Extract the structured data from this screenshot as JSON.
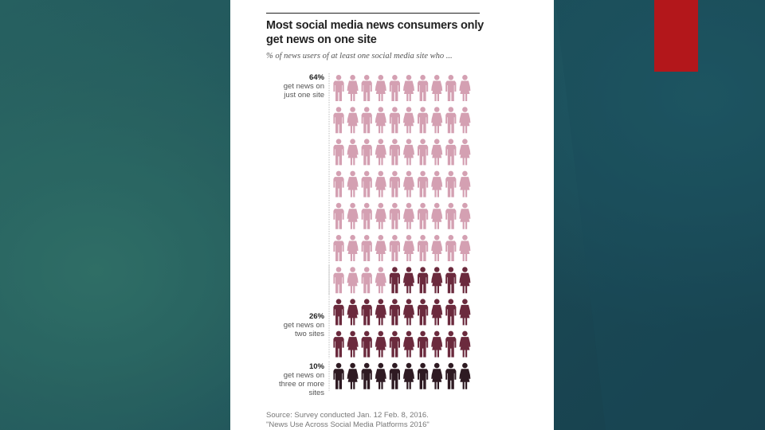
{
  "slide": {
    "accent_color": "#b3171b",
    "cursor": "arrow-cursor-icon"
  },
  "chart_data": {
    "type": "table",
    "title": "Most social media news consumers only get news on one site",
    "subtitle": "% of news users of at least one social media site who ...",
    "unit": "%",
    "icon": "person-icon",
    "columns": 10,
    "groups": [
      {
        "value": 64,
        "value_label": "64%",
        "label": "get news on just one site",
        "label_lines": [
          "get news on",
          "just one site"
        ],
        "color": "#d4a0b2"
      },
      {
        "value": 26,
        "value_label": "26%",
        "label": "get news on two sites",
        "label_lines": [
          "get news on",
          "two sites"
        ],
        "color": "#6b2a3d"
      },
      {
        "value": 10,
        "value_label": "10%",
        "label": "get news on three or more sites",
        "label_lines": [
          "get news on",
          "three or more",
          "sites"
        ],
        "color": "#2e1a22"
      }
    ],
    "source_lines": [
      "Source: Survey conducted Jan. 12 Feb. 8, 2016.",
      "\"News Use Across Social Media Platforms 2016\""
    ]
  }
}
